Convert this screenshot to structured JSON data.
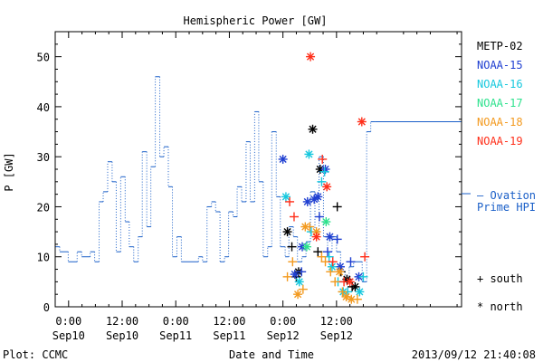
{
  "chart_data": {
    "type": "scatter",
    "title": "Hemispheric Power [GW]",
    "ylabel": "P [GW]",
    "xlabel": "Date and Time",
    "xlim": [
      "2013-09-09T21:00",
      "2013-09-13T16:00"
    ],
    "ylim": [
      0,
      55
    ],
    "yticks": [
      0,
      10,
      20,
      30,
      40,
      50
    ],
    "xticks": [
      {
        "t": "2013-09-10T00:00",
        "time": "0:00",
        "date": "Sep10"
      },
      {
        "t": "2013-09-10T12:00",
        "time": "12:00",
        "date": "Sep10"
      },
      {
        "t": "2013-09-11T00:00",
        "time": "0:00",
        "date": "Sep11"
      },
      {
        "t": "2013-09-11T12:00",
        "time": "12:00",
        "date": "Sep11"
      },
      {
        "t": "2013-09-12T00:00",
        "time": "0:00",
        "date": "Sep12"
      },
      {
        "t": "2013-09-12T12:00",
        "time": "12:00",
        "date": "Sep12"
      }
    ],
    "ovation_prime_hpi": {
      "name": "— Ovation Prime HPI",
      "color": "#1a5fc8",
      "steps": [
        [
          "2013-09-09T21:00",
          12
        ],
        [
          "2013-09-09T22:00",
          11
        ],
        [
          "2013-09-09T23:55",
          9
        ],
        [
          "2013-09-10T01:55",
          11
        ],
        [
          "2013-09-10T02:55",
          10
        ],
        [
          "2013-09-10T04:50",
          11
        ],
        [
          "2013-09-10T05:50",
          9
        ],
        [
          "2013-09-10T06:50",
          21
        ],
        [
          "2013-09-10T07:45",
          23
        ],
        [
          "2013-09-10T08:45",
          29
        ],
        [
          "2013-09-10T09:45",
          25
        ],
        [
          "2013-09-10T10:40",
          11
        ],
        [
          "2013-09-10T11:40",
          26
        ],
        [
          "2013-09-10T12:40",
          17
        ],
        [
          "2013-09-10T13:35",
          12
        ],
        [
          "2013-09-10T14:35",
          9
        ],
        [
          "2013-09-10T15:35",
          14
        ],
        [
          "2013-09-10T16:30",
          31
        ],
        [
          "2013-09-10T17:30",
          16
        ],
        [
          "2013-09-10T18:25",
          28
        ],
        [
          "2013-09-10T19:25",
          46
        ],
        [
          "2013-09-10T20:25",
          30
        ],
        [
          "2013-09-10T21:20",
          32
        ],
        [
          "2013-09-10T22:20",
          24
        ],
        [
          "2013-09-10T23:15",
          10
        ],
        [
          "2013-09-11T00:15",
          14
        ],
        [
          "2013-09-11T01:15",
          9
        ],
        [
          "2013-09-11T05:05",
          10
        ],
        [
          "2013-09-11T06:00",
          9
        ],
        [
          "2013-09-11T07:00",
          20
        ],
        [
          "2013-09-11T08:00",
          21
        ],
        [
          "2013-09-11T08:55",
          19
        ],
        [
          "2013-09-11T09:55",
          9
        ],
        [
          "2013-09-11T10:55",
          10
        ],
        [
          "2013-09-11T11:50",
          19
        ],
        [
          "2013-09-11T12:50",
          18
        ],
        [
          "2013-09-11T13:45",
          24
        ],
        [
          "2013-09-11T14:45",
          21
        ],
        [
          "2013-09-11T15:45",
          33
        ],
        [
          "2013-09-11T16:40",
          21
        ],
        [
          "2013-09-11T17:40",
          39
        ],
        [
          "2013-09-11T18:35",
          25
        ],
        [
          "2013-09-11T19:35",
          10
        ],
        [
          "2013-09-11T20:35",
          12
        ],
        [
          "2013-09-11T21:30",
          35
        ],
        [
          "2013-09-11T22:30",
          22
        ],
        [
          "2013-09-11T23:25",
          12
        ],
        [
          "2013-09-12T00:30",
          10
        ],
        [
          "2013-09-12T01:20",
          16
        ],
        [
          "2013-09-12T02:20",
          14
        ],
        [
          "2013-09-12T03:15",
          9
        ],
        [
          "2013-09-12T04:15",
          10
        ],
        [
          "2013-09-12T05:10",
          13
        ],
        [
          "2013-09-12T06:10",
          23
        ],
        [
          "2013-09-12T07:10",
          15
        ],
        [
          "2013-09-12T08:05",
          30
        ],
        [
          "2013-09-12T09:05",
          14
        ],
        [
          "2013-09-12T10:00",
          11
        ],
        [
          "2013-09-12T11:00",
          14
        ],
        [
          "2013-09-12T12:00",
          11
        ],
        [
          "2013-09-12T12:55",
          7
        ],
        [
          "2013-09-12T13:55",
          5
        ],
        [
          "2013-09-12T14:50",
          8
        ],
        [
          "2013-09-12T15:50",
          9
        ],
        [
          "2013-09-12T17:45",
          5
        ],
        [
          "2013-09-12T18:45",
          35
        ],
        [
          "2013-09-12T19:40",
          37
        ],
        [
          "2013-09-12T20:40",
          37
        ]
      ]
    },
    "series": [
      {
        "name": "METP-02",
        "color": "#000000",
        "points": [
          {
            "t": "2013-09-12T01:00",
            "y": 15,
            "m": "north"
          },
          {
            "t": "2013-09-12T03:30",
            "y": 7,
            "m": "north"
          },
          {
            "t": "2013-09-12T06:40",
            "y": 35.5,
            "m": "north"
          },
          {
            "t": "2013-09-12T08:20",
            "y": 27.5,
            "m": "north"
          },
          {
            "t": "2013-09-12T14:20",
            "y": 5.5,
            "m": "north"
          },
          {
            "t": "2013-09-12T16:10",
            "y": 4,
            "m": "north"
          },
          {
            "t": "2013-09-12T02:00",
            "y": 12,
            "m": "south"
          },
          {
            "t": "2013-09-12T07:50",
            "y": 11,
            "m": "south"
          },
          {
            "t": "2013-09-12T12:10",
            "y": 20,
            "m": "south"
          },
          {
            "t": "2013-09-12T13:00",
            "y": 7,
            "m": "south"
          },
          {
            "t": "2013-09-12T15:30",
            "y": 4,
            "m": "south"
          },
          {
            "t": "2013-09-12T03:00",
            "y": 6,
            "m": "south"
          }
        ]
      },
      {
        "name": "NOAA-15",
        "color": "#1f3fd1",
        "points": [
          {
            "t": "2013-09-12T00:00",
            "y": 29.5,
            "m": "north"
          },
          {
            "t": "2013-09-12T05:30",
            "y": 21,
            "m": "north"
          },
          {
            "t": "2013-09-12T07:00",
            "y": 21.5,
            "m": "north"
          },
          {
            "t": "2013-09-12T07:50",
            "y": 22,
            "m": "north"
          },
          {
            "t": "2013-09-12T09:30",
            "y": 27.5,
            "m": "north"
          },
          {
            "t": "2013-09-12T10:30",
            "y": 14,
            "m": "north"
          },
          {
            "t": "2013-09-12T04:20",
            "y": 12,
            "m": "north"
          },
          {
            "t": "2013-09-12T12:50",
            "y": 8,
            "m": "north"
          },
          {
            "t": "2013-09-12T17:00",
            "y": 6,
            "m": "north"
          },
          {
            "t": "2013-09-12T02:40",
            "y": 6.5,
            "m": "north"
          },
          {
            "t": "2013-09-12T08:10",
            "y": 18,
            "m": "south"
          },
          {
            "t": "2013-09-12T10:00",
            "y": 11,
            "m": "south"
          },
          {
            "t": "2013-09-12T04:10",
            "y": 7,
            "m": "south"
          },
          {
            "t": "2013-09-12T12:10",
            "y": 13.5,
            "m": "south"
          },
          {
            "t": "2013-09-12T15:10",
            "y": 9,
            "m": "south"
          }
        ]
      },
      {
        "name": "NOAA-16",
        "color": "#16c8de",
        "points": [
          {
            "t": "2013-09-12T00:40",
            "y": 22,
            "m": "north"
          },
          {
            "t": "2013-09-12T05:50",
            "y": 30.5,
            "m": "north"
          },
          {
            "t": "2013-09-12T03:40",
            "y": 5,
            "m": "north"
          },
          {
            "t": "2013-09-12T11:00",
            "y": 8,
            "m": "north"
          },
          {
            "t": "2013-09-12T13:30",
            "y": 3,
            "m": "north"
          },
          {
            "t": "2013-09-12T17:10",
            "y": 3,
            "m": "north"
          },
          {
            "t": "2013-09-12T08:40",
            "y": 25,
            "m": "south"
          },
          {
            "t": "2013-09-12T09:20",
            "y": 27,
            "m": "south"
          },
          {
            "t": "2013-09-12T06:20",
            "y": 15,
            "m": "south"
          },
          {
            "t": "2013-09-12T10:20",
            "y": 10,
            "m": "south"
          },
          {
            "t": "2013-09-12T12:20",
            "y": 5,
            "m": "south"
          },
          {
            "t": "2013-09-12T14:30",
            "y": 3,
            "m": "south"
          },
          {
            "t": "2013-09-12T18:00",
            "y": 6,
            "m": "south"
          }
        ]
      },
      {
        "name": "NOAA-17",
        "color": "#2ee28e",
        "points": [
          {
            "t": "2013-09-12T05:20",
            "y": 12,
            "m": "north"
          },
          {
            "t": "2013-09-12T09:40",
            "y": 17,
            "m": "north"
          }
        ]
      },
      {
        "name": "NOAA-18",
        "color": "#f39a1f",
        "points": [
          {
            "t": "2013-09-12T05:00",
            "y": 16,
            "m": "north"
          },
          {
            "t": "2013-09-12T07:30",
            "y": 15,
            "m": "north"
          },
          {
            "t": "2013-09-12T03:20",
            "y": 2.5,
            "m": "north"
          },
          {
            "t": "2013-09-12T12:40",
            "y": 7,
            "m": "north"
          },
          {
            "t": "2013-09-12T14:10",
            "y": 2,
            "m": "north"
          },
          {
            "t": "2013-09-12T15:20",
            "y": 1.5,
            "m": "north"
          },
          {
            "t": "2013-09-12T01:00",
            "y": 6,
            "m": "south"
          },
          {
            "t": "2013-09-12T02:10",
            "y": 9,
            "m": "south"
          },
          {
            "t": "2013-09-12T06:00",
            "y": 16,
            "m": "south"
          },
          {
            "t": "2013-09-12T08:40",
            "y": 10,
            "m": "south"
          },
          {
            "t": "2013-09-12T09:30",
            "y": 9,
            "m": "south"
          },
          {
            "t": "2013-09-12T10:40",
            "y": 7,
            "m": "south"
          },
          {
            "t": "2013-09-12T11:40",
            "y": 5,
            "m": "south"
          },
          {
            "t": "2013-09-12T13:20",
            "y": 3,
            "m": "south"
          },
          {
            "t": "2013-09-12T16:40",
            "y": 1.5,
            "m": "south"
          },
          {
            "t": "2013-09-12T04:30",
            "y": 3.5,
            "m": "south"
          }
        ]
      },
      {
        "name": "NOAA-19",
        "color": "#ff2f1a",
        "points": [
          {
            "t": "2013-09-12T06:10",
            "y": 50,
            "m": "north"
          },
          {
            "t": "2013-09-12T17:40",
            "y": 37,
            "m": "north"
          },
          {
            "t": "2013-09-12T09:50",
            "y": 24,
            "m": "north"
          },
          {
            "t": "2013-09-12T07:30",
            "y": 14,
            "m": "north"
          },
          {
            "t": "2013-09-12T15:00",
            "y": 5,
            "m": "north"
          },
          {
            "t": "2013-09-12T01:30",
            "y": 21,
            "m": "south"
          },
          {
            "t": "2013-09-12T02:30",
            "y": 18,
            "m": "south"
          },
          {
            "t": "2013-09-12T08:50",
            "y": 29.5,
            "m": "south"
          },
          {
            "t": "2013-09-12T11:10",
            "y": 9,
            "m": "south"
          },
          {
            "t": "2013-09-12T13:40",
            "y": 5,
            "m": "south"
          },
          {
            "t": "2013-09-12T18:20",
            "y": 10,
            "m": "south"
          }
        ]
      }
    ],
    "markers": {
      "south": "+ south",
      "north": "* north"
    },
    "ovation_line2": "Prime HPI"
  },
  "footer": {
    "left": "Plot: CCMC",
    "right": "2013/09/12 21:40:08"
  }
}
